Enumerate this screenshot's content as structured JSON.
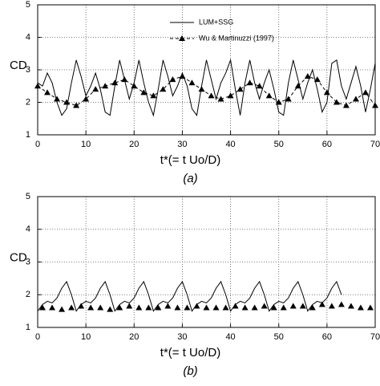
{
  "chart_data": [
    {
      "type": "line",
      "ylabel": "CD",
      "xlabel": "t*(= t Uo/D)",
      "caption": "(a)",
      "xlim": [
        0,
        70
      ],
      "ylim": [
        1,
        5
      ],
      "xticks": [
        0,
        10,
        20,
        30,
        40,
        50,
        60,
        70
      ],
      "yticks": [
        1,
        2,
        3,
        4,
        5
      ],
      "grid": true,
      "legend": "top",
      "series": [
        {
          "name": "LUM+SSG",
          "color": "#000000",
          "style": "solid",
          "x": [
            0,
            1,
            2,
            3,
            4,
            5,
            6,
            7,
            8,
            9,
            10,
            11,
            12,
            13,
            14,
            15,
            16,
            17,
            18,
            19,
            20,
            21,
            22,
            23,
            24,
            25,
            26,
            27,
            28,
            29,
            30,
            31,
            32,
            33,
            34,
            35,
            36,
            37,
            38,
            39,
            40,
            41,
            42,
            43,
            44,
            45,
            46,
            47,
            48,
            49,
            50,
            51,
            52,
            53,
            54,
            55,
            56,
            57,
            58,
            59,
            60,
            61,
            62,
            63,
            64,
            65,
            66,
            67,
            68,
            69,
            70
          ],
          "values": [
            2.6,
            2.5,
            2.9,
            2.6,
            2.0,
            1.6,
            1.8,
            2.6,
            3.3,
            2.8,
            2.2,
            2.5,
            2.9,
            2.4,
            1.7,
            1.6,
            2.5,
            3.3,
            2.7,
            2.1,
            2.6,
            3.3,
            2.6,
            2.0,
            1.6,
            2.4,
            3.3,
            2.8,
            2.2,
            2.5,
            2.9,
            2.5,
            1.8,
            1.6,
            2.5,
            3.3,
            2.7,
            2.1,
            2.6,
            2.9,
            3.3,
            2.4,
            1.6,
            2.6,
            3.3,
            2.6,
            2.1,
            2.6,
            3.0,
            2.4,
            1.7,
            1.6,
            2.6,
            3.3,
            2.7,
            2.1,
            2.6,
            3.0,
            2.4,
            1.7,
            2.0,
            3.2,
            3.3,
            2.5,
            2.1,
            2.6,
            3.1,
            2.5,
            1.7,
            2.4,
            3.2
          ]
        },
        {
          "name": "Wu & Martinuzzi (1997)",
          "color": "#000000",
          "style": "dashed",
          "marker": "triangle",
          "x": [
            0,
            2,
            4,
            6,
            8,
            10,
            12,
            14,
            16,
            18,
            20,
            22,
            24,
            26,
            28,
            30,
            32,
            34,
            36,
            38,
            40,
            42,
            44,
            46,
            48,
            50,
            52,
            54,
            56,
            58,
            60,
            62,
            64,
            66,
            68,
            70
          ],
          "values": [
            2.5,
            2.3,
            2.1,
            2.0,
            1.9,
            2.1,
            2.4,
            2.5,
            2.6,
            2.7,
            2.5,
            2.3,
            2.2,
            2.4,
            2.7,
            2.8,
            2.6,
            2.4,
            2.2,
            2.1,
            2.2,
            2.4,
            2.6,
            2.5,
            2.2,
            2.0,
            2.1,
            2.5,
            2.8,
            2.7,
            2.3,
            2.0,
            1.9,
            2.1,
            2.3,
            1.9
          ]
        }
      ]
    },
    {
      "type": "line",
      "ylabel": "CD",
      "xlabel": "t*(= t Uo/D)",
      "caption": "(b)",
      "xlim": [
        0,
        70
      ],
      "ylim": [
        1,
        5
      ],
      "xticks": [
        0,
        10,
        20,
        30,
        40,
        50,
        60,
        70
      ],
      "yticks": [
        1,
        2,
        3,
        4,
        5
      ],
      "grid": true,
      "series": [
        {
          "color": "#000000",
          "style": "solid",
          "x": [
            0,
            1,
            2,
            3,
            4,
            5,
            6,
            7,
            8,
            9,
            10,
            11,
            12,
            13,
            14,
            15,
            16,
            17,
            18,
            19,
            20,
            21,
            22,
            23,
            24,
            25,
            26,
            27,
            28,
            29,
            30,
            31,
            32,
            33,
            34,
            35,
            36,
            37,
            38,
            39,
            40,
            41,
            42,
            43,
            44,
            45,
            46,
            47,
            48,
            49,
            50,
            51,
            52,
            53,
            54,
            55,
            56,
            57,
            58,
            59,
            60,
            61,
            62,
            63
          ],
          "values": [
            1.5,
            1.7,
            1.8,
            1.75,
            1.9,
            2.2,
            2.4,
            2.0,
            1.5,
            1.7,
            1.8,
            1.75,
            1.9,
            2.2,
            2.4,
            2.0,
            1.5,
            1.7,
            1.8,
            1.75,
            1.9,
            2.2,
            2.4,
            2.0,
            1.5,
            1.7,
            1.8,
            1.75,
            1.9,
            2.2,
            2.4,
            2.0,
            1.5,
            1.7,
            1.8,
            1.75,
            1.9,
            2.2,
            2.4,
            2.0,
            1.5,
            1.7,
            1.8,
            1.75,
            1.9,
            2.2,
            2.4,
            2.0,
            1.5,
            1.7,
            1.8,
            1.75,
            1.9,
            2.2,
            2.4,
            2.0,
            1.5,
            1.7,
            1.8,
            1.75,
            1.9,
            2.2,
            2.4,
            2.0
          ]
        },
        {
          "color": "#000000",
          "style": "none",
          "marker": "triangle",
          "x": [
            1,
            3,
            5,
            7,
            9,
            11,
            13,
            15,
            17,
            19,
            21,
            23,
            25,
            27,
            29,
            31,
            33,
            35,
            37,
            39,
            41,
            43,
            45,
            47,
            49,
            51,
            53,
            55,
            57,
            59,
            61,
            63,
            65,
            67,
            69
          ],
          "values": [
            1.6,
            1.6,
            1.55,
            1.6,
            1.65,
            1.6,
            1.6,
            1.55,
            1.6,
            1.65,
            1.6,
            1.6,
            1.6,
            1.65,
            1.6,
            1.6,
            1.65,
            1.6,
            1.6,
            1.6,
            1.65,
            1.6,
            1.6,
            1.65,
            1.6,
            1.6,
            1.65,
            1.65,
            1.6,
            1.7,
            1.65,
            1.7,
            1.65,
            1.6,
            1.6
          ]
        }
      ]
    }
  ]
}
